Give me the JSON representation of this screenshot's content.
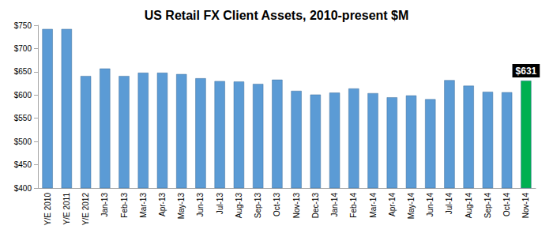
{
  "chart_data": {
    "type": "bar",
    "title": "US Retail FX Client Assets, 2010-present $M",
    "categories": [
      "Y/E 2010",
      "Y/E 2011",
      "Y/E 2012",
      "Jan-13",
      "Feb-13",
      "Mar-13",
      "Apr-13",
      "May-13",
      "Jun-13",
      "Jul-13",
      "Aug-13",
      "Sep-13",
      "Oct-13",
      "Nov-13",
      "Dec-13",
      "Jan-14",
      "Feb-14",
      "Mar-14",
      "Apr-14",
      "May-14",
      "Jun-14",
      "Jul-14",
      "Aug-14",
      "Sep-14",
      "Oct-14",
      "Nov-14"
    ],
    "values": [
      742,
      742,
      641,
      657,
      641,
      648,
      648,
      645,
      636,
      630,
      629,
      624,
      633,
      609,
      601,
      605,
      614,
      604,
      595,
      599,
      591,
      632,
      620,
      607,
      606,
      631
    ],
    "value_labels": [
      null,
      null,
      null,
      null,
      null,
      null,
      null,
      null,
      null,
      null,
      null,
      null,
      null,
      null,
      null,
      null,
      null,
      null,
      null,
      null,
      null,
      null,
      null,
      null,
      null,
      "$631"
    ],
    "data_labels": true,
    "colors": [
      "#5b9bd5",
      "#5b9bd5",
      "#5b9bd5",
      "#5b9bd5",
      "#5b9bd5",
      "#5b9bd5",
      "#5b9bd5",
      "#5b9bd5",
      "#5b9bd5",
      "#5b9bd5",
      "#5b9bd5",
      "#5b9bd5",
      "#5b9bd5",
      "#5b9bd5",
      "#5b9bd5",
      "#5b9bd5",
      "#5b9bd5",
      "#5b9bd5",
      "#5b9bd5",
      "#5b9bd5",
      "#5b9bd5",
      "#5b9bd5",
      "#5b9bd5",
      "#5b9bd5",
      "#5b9bd5",
      "#00b050"
    ],
    "ylim": [
      400,
      750
    ],
    "yticks": [
      {
        "value": 400,
        "label": "$400"
      },
      {
        "value": 450,
        "label": "$450"
      },
      {
        "value": 500,
        "label": "$500"
      },
      {
        "value": 550,
        "label": "$550"
      },
      {
        "value": 600,
        "label": "$600"
      },
      {
        "value": 650,
        "label": "$650"
      },
      {
        "value": 700,
        "label": "$700"
      },
      {
        "value": 750,
        "label": "$750"
      }
    ],
    "grid": false
  }
}
